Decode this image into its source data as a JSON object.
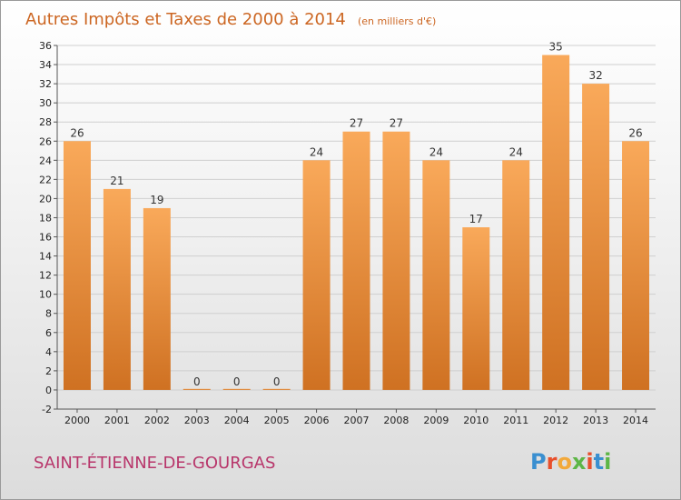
{
  "title": "Autres Impôts et Taxes de 2000 à 2014",
  "unit": "(en milliers d'€)",
  "place": "SAINT-ÉTIENNE-DE-GOURGAS",
  "logo": "Proxiti",
  "colors": {
    "title": "#cc6622",
    "bar_top": "#f9a95a",
    "bar_bottom": "#cf7122",
    "place": "#b8366b",
    "grid": "#cfcfcf"
  },
  "chart_data": {
    "type": "bar",
    "categories": [
      "2000",
      "2001",
      "2002",
      "2003",
      "2004",
      "2005",
      "2006",
      "2007",
      "2008",
      "2009",
      "2010",
      "2011",
      "2012",
      "2013",
      "2014"
    ],
    "values": [
      26,
      21,
      19,
      0,
      0,
      0,
      24,
      27,
      27,
      24,
      17,
      24,
      35,
      32,
      26
    ],
    "ylim": [
      -2,
      36
    ],
    "yticks": [
      -2,
      0,
      2,
      4,
      6,
      8,
      10,
      12,
      14,
      16,
      18,
      20,
      22,
      24,
      26,
      28,
      30,
      32,
      34,
      36
    ],
    "grid": true,
    "xlabel": "",
    "ylabel": ""
  }
}
